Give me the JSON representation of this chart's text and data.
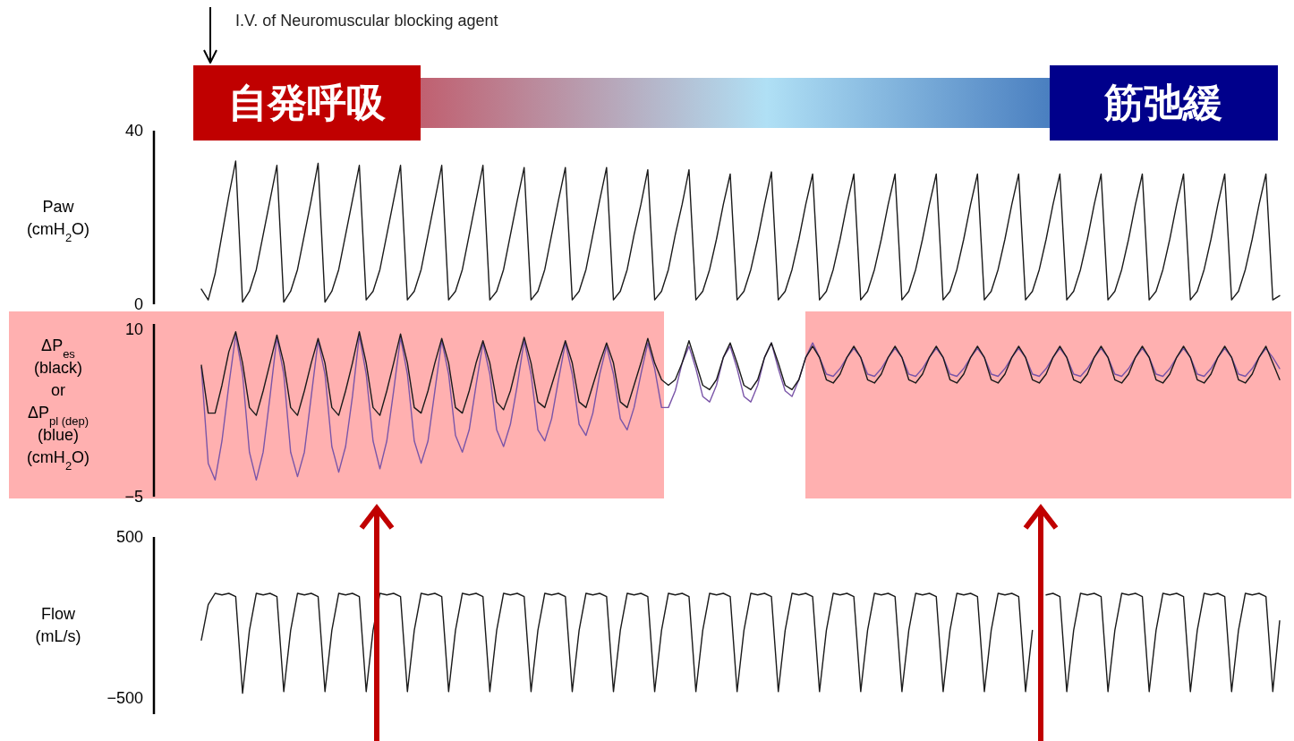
{
  "chart_data": [
    {
      "type": "line",
      "ylabel": "Paw\n(cmH$_{2}$O)",
      "ylim": [
        0,
        40
      ],
      "yticks": [
        0,
        40
      ],
      "tick_labels": "y",
      "annotations": [
        "I.V. of Neuromuscular blocking agent",
        "自発呼吸",
        "筋弛緩"
      ],
      "categories": [
        null,
        null,
        null,
        null,
        null,
        null,
        null,
        null,
        null,
        null,
        null,
        null,
        null,
        null,
        null,
        null,
        null,
        null,
        null,
        null,
        null,
        null,
        null,
        null,
        null,
        null,
        null,
        null,
        null,
        null,
        null,
        null,
        null,
        null,
        null,
        null,
        null,
        null,
        null,
        null,
        null,
        null,
        null,
        null,
        null,
        null,
        null,
        null,
        null,
        null,
        null,
        null,
        null,
        null,
        null,
        null,
        null,
        null,
        null,
        null,
        null,
        null,
        null,
        null,
        null,
        null,
        null,
        null,
        null,
        null,
        null,
        null,
        null,
        null,
        null,
        null,
        null,
        null,
        null,
        null,
        null,
        null,
        null,
        null,
        null,
        null,
        null,
        null,
        null,
        null,
        null,
        null,
        null,
        null,
        null,
        null,
        null,
        null,
        null,
        null,
        null,
        null,
        null,
        null,
        null,
        null,
        null,
        null,
        null,
        null,
        null,
        null,
        null,
        null,
        null,
        null,
        null,
        null,
        null,
        null,
        null,
        null,
        null,
        null,
        null,
        null,
        null,
        null,
        null,
        null,
        null,
        null,
        null,
        null,
        null,
        null,
        null,
        null,
        null,
        null,
        null,
        null,
        null,
        null,
        null,
        null,
        null,
        null,
        null,
        null,
        null,
        null,
        null,
        null,
        null,
        null,
        null,
        null
      ],
      "series": [
        {
          "color": "#1a1a1a",
          "values": [
            3.5,
            1,
            7,
            16,
            25,
            33,
            0.5,
            3,
            8,
            16,
            24,
            32,
            0.5,
            3,
            8,
            16,
            24,
            32.5,
            0.5,
            3,
            8,
            16,
            24,
            32,
            1,
            3,
            8,
            16,
            24,
            32,
            1,
            3,
            8,
            16,
            24,
            32,
            1,
            3,
            8,
            16,
            24,
            32,
            1,
            3,
            8,
            16,
            24,
            31.5,
            1,
            3,
            8,
            16,
            24,
            31.5,
            1,
            3,
            8,
            16,
            24,
            31.5,
            1,
            3,
            8,
            16,
            23,
            31,
            1,
            3,
            8,
            16,
            23,
            31,
            1,
            3,
            8,
            15,
            23,
            30,
            1,
            3,
            8,
            15,
            23,
            30.5,
            1,
            3,
            8,
            15,
            23,
            30,
            1,
            3,
            8,
            15,
            23,
            30,
            1,
            3,
            8,
            15,
            23,
            30,
            1,
            3,
            8,
            15,
            23,
            30,
            1,
            3,
            8,
            15,
            23,
            30,
            1,
            3,
            8,
            15,
            23,
            30,
            1,
            3,
            8,
            15,
            23,
            30,
            1,
            3,
            8,
            15,
            23,
            30,
            1,
            3,
            8,
            15,
            23,
            30,
            1,
            3,
            8,
            15,
            23,
            30,
            1,
            3,
            8,
            15,
            23,
            30,
            1,
            3,
            8,
            15,
            23,
            30,
            1,
            2
          ]
        }
      ]
    },
    {
      "type": "line",
      "ylabel": "ΔP$_{es}$\n(black)\nor\nΔP$_{pl (dep)}$\n(blue)\n(cmH$_{2}$O)",
      "ylim": [
        -5,
        10.5
      ],
      "yticks": [
        {
          "value": -5,
          "label": "−5"
        },
        10
      ],
      "tick_labels": "y",
      "categories": [
        null,
        null,
        null,
        null,
        null,
        null,
        null,
        null,
        null,
        null,
        null,
        null,
        null,
        null,
        null,
        null,
        null,
        null,
        null,
        null,
        null,
        null,
        null,
        null,
        null,
        null,
        null,
        null,
        null,
        null,
        null,
        null,
        null,
        null,
        null,
        null,
        null,
        null,
        null,
        null,
        null,
        null,
        null,
        null,
        null,
        null,
        null,
        null,
        null,
        null,
        null,
        null,
        null,
        null,
        null,
        null,
        null,
        null,
        null,
        null,
        null,
        null,
        null,
        null,
        null,
        null,
        null,
        null,
        null,
        null,
        null,
        null,
        null,
        null,
        null,
        null,
        null,
        null,
        null,
        null,
        null,
        null,
        null,
        null,
        null,
        null,
        null,
        null,
        null,
        null,
        null,
        null,
        null,
        null,
        null,
        null,
        null,
        null,
        null,
        null,
        null,
        null,
        null,
        null,
        null,
        null,
        null,
        null,
        null,
        null,
        null,
        null,
        null,
        null,
        null,
        null,
        null,
        null,
        null,
        null,
        null,
        null,
        null,
        null,
        null,
        null,
        null,
        null,
        null,
        null,
        null,
        null,
        null,
        null,
        null,
        null,
        null,
        null,
        null,
        null,
        null,
        null,
        null,
        null,
        null,
        null,
        null,
        null,
        null,
        null,
        null,
        null,
        null,
        null,
        null,
        null,
        null,
        null
      ],
      "series": [
        {
          "color": "#7a55a8",
          "values": [
            6.6,
            -2,
            -3.5,
            0,
            5,
            9.5,
            6,
            -1,
            -3.5,
            -1,
            4,
            9.3,
            6,
            -1,
            -3.2,
            -1,
            4,
            9,
            6,
            -0.5,
            -2.8,
            -0.5,
            4,
            9.5,
            6,
            0,
            -2.5,
            0,
            4.5,
            9.3,
            6,
            0,
            -2,
            0,
            4.5,
            9,
            6,
            0.5,
            -1,
            1,
            5,
            8.8,
            6,
            1,
            -0.5,
            1.5,
            5,
            9,
            6,
            1,
            0,
            2,
            5.5,
            8.8,
            6,
            1.5,
            0.5,
            2.5,
            6,
            8.5,
            6,
            2,
            1,
            3,
            6,
            8.8,
            6.5,
            3,
            3,
            4.5,
            7,
            8.5,
            6.5,
            4,
            3.5,
            5,
            7.5,
            8.5,
            6.5,
            4,
            3.5,
            5,
            7.5,
            8.8,
            6.5,
            4.5,
            4,
            5.5,
            7.5,
            8.8,
            7.5,
            6,
            5.8,
            6.5,
            7.5,
            8.3,
            7.5,
            6,
            5.8,
            6.5,
            7.5,
            8.3,
            7.5,
            6,
            5.8,
            6.5,
            7.5,
            8.3,
            7.5,
            6,
            5.8,
            6.5,
            7.5,
            8.3,
            7.5,
            6,
            5.8,
            6.5,
            7.5,
            8.3,
            7.5,
            6,
            5.8,
            6.5,
            7.5,
            8.3,
            7.5,
            6,
            5.8,
            6.5,
            7.5,
            8.3,
            7.5,
            6,
            5.8,
            6.5,
            7.5,
            8.3,
            7.5,
            6,
            5.8,
            6.5,
            7.5,
            8.3,
            7.5,
            6,
            5.8,
            6.5,
            7.5,
            8.3,
            7.5,
            6,
            5.8,
            6.5,
            7.5,
            8.3,
            7.5,
            6.5
          ]
        },
        {
          "color": "#1a1a1a",
          "values": [
            6.8,
            2.5,
            2.5,
            5,
            8,
            9.8,
            7,
            3,
            2.3,
            4.5,
            7,
            9.5,
            7,
            3,
            2.3,
            4.5,
            7,
            9.2,
            7,
            3,
            2.3,
            4.5,
            7,
            9.8,
            7,
            3,
            2.3,
            4.5,
            7,
            9.6,
            7,
            3,
            2.5,
            4.5,
            7,
            9.2,
            7,
            3,
            2.5,
            4.5,
            7,
            9,
            7,
            3.5,
            2.8,
            4.5,
            7,
            9.3,
            7,
            3.5,
            3,
            5,
            7,
            9,
            7,
            3.5,
            3,
            5,
            7,
            8.8,
            7,
            3.5,
            3,
            5,
            7,
            9.2,
            7,
            5.5,
            5,
            5.5,
            7,
            9,
            7,
            5,
            4.6,
            5.5,
            7.5,
            8.8,
            7,
            5,
            4.6,
            5.5,
            7.5,
            8.8,
            7,
            5,
            4.6,
            5.5,
            7.5,
            8.5,
            7.5,
            5.5,
            5.2,
            6,
            7.5,
            8.5,
            7.5,
            5.5,
            5.2,
            6,
            7.5,
            8.5,
            7.5,
            5.5,
            5.2,
            6,
            7.5,
            8.5,
            7.5,
            5.5,
            5.2,
            6,
            7.5,
            8.5,
            7.5,
            5.5,
            5.2,
            6,
            7.5,
            8.5,
            7.5,
            5.5,
            5.2,
            6,
            7.5,
            8.5,
            7.5,
            5.5,
            5.2,
            6,
            7.5,
            8.5,
            7.5,
            5.5,
            5.2,
            6,
            7.5,
            8.5,
            7.5,
            5.5,
            5.2,
            6,
            7.5,
            8.5,
            7.5,
            5.5,
            5.2,
            6,
            7.5,
            8.5,
            7.5,
            5.5,
            5.2,
            6,
            7.5,
            8.5,
            7,
            5.5
          ]
        }
      ]
    },
    {
      "type": "line",
      "ylabel": "Flow\n(mL/s)",
      "ylim": [
        -600,
        500
      ],
      "yticks": [
        {
          "value": -500,
          "label": "−500"
        },
        500
      ],
      "tick_labels": "y",
      "categories": [
        null,
        null,
        null,
        null,
        null,
        null,
        null,
        null,
        null,
        null,
        null,
        null,
        null,
        null,
        null,
        null,
        null,
        null,
        null,
        null,
        null,
        null,
        null,
        null,
        null,
        null,
        null,
        null,
        null,
        null,
        null,
        null,
        null,
        null,
        null,
        null,
        null,
        null,
        null,
        null,
        null,
        null,
        null,
        null,
        null,
        null,
        null,
        null,
        null,
        null,
        null,
        null,
        null,
        null,
        null,
        null,
        null,
        null,
        null,
        null,
        null,
        null,
        null,
        null,
        null,
        null,
        null,
        null,
        null,
        null,
        null,
        null,
        null,
        null,
        null,
        null,
        null,
        null,
        null,
        null,
        null,
        null,
        null,
        null,
        null,
        null,
        null,
        null,
        null,
        null,
        null,
        null,
        null,
        null,
        null,
        null,
        null,
        null,
        null,
        null,
        null,
        null,
        null,
        null,
        null,
        null,
        null,
        null,
        null,
        null,
        null,
        null,
        null,
        null,
        null,
        null,
        null,
        null,
        null,
        null,
        null,
        null,
        null,
        null,
        null,
        null,
        null,
        null,
        null,
        null,
        null,
        null,
        null,
        null,
        null,
        null,
        null,
        null,
        null,
        null,
        null,
        null,
        null,
        null,
        null,
        null,
        null,
        null,
        null,
        null,
        null,
        null,
        null,
        null,
        null,
        null,
        null,
        null
      ],
      "series": [
        {
          "color": "#1a1a1a",
          "values": [
            -140,
            80,
            150,
            140,
            150,
            130,
            -470,
            -80,
            150,
            140,
            150,
            130,
            -460,
            -80,
            150,
            140,
            150,
            130,
            -460,
            -80,
            150,
            140,
            150,
            130,
            -460,
            -80,
            150,
            140,
            150,
            130,
            -460,
            -80,
            150,
            140,
            150,
            130,
            -460,
            -80,
            150,
            140,
            150,
            130,
            -460,
            -80,
            150,
            140,
            150,
            130,
            -460,
            -80,
            150,
            140,
            150,
            130,
            -460,
            -80,
            150,
            140,
            150,
            130,
            -460,
            -80,
            150,
            140,
            150,
            130,
            -460,
            -80,
            150,
            140,
            150,
            130,
            -460,
            -80,
            150,
            140,
            150,
            130,
            -460,
            -80,
            150,
            140,
            150,
            130,
            -460,
            -80,
            150,
            140,
            150,
            130,
            -460,
            -80,
            150,
            140,
            150,
            130,
            -460,
            -80,
            150,
            140,
            150,
            130,
            -460,
            -80,
            150,
            140,
            150,
            130,
            -460,
            -80,
            150,
            140,
            150,
            130,
            -460,
            -80,
            150,
            140,
            150,
            130,
            -460,
            -80,
            null,
            140,
            150,
            130,
            -460,
            -80,
            150,
            140,
            150,
            130,
            -460,
            -80,
            150,
            140,
            150,
            130,
            -460,
            -80,
            150,
            140,
            150,
            130,
            -460,
            -80,
            150,
            140,
            150,
            130,
            -460,
            -80,
            150,
            140,
            150,
            130,
            -460,
            -20
          ]
        }
      ]
    }
  ]
}
